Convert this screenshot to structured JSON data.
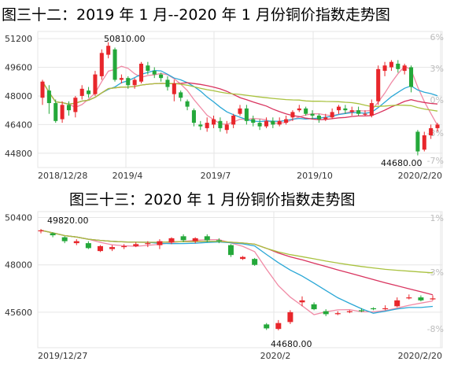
{
  "titles": {
    "chart1": "图三十二：2019 年 1 月--2020 年 1 月份铜价指数走势图",
    "chart2": "图三十三：2020 年 1 月份铜价指数走势图"
  },
  "colors": {
    "up": "#e8262b",
    "down": "#24a83a",
    "ma_cyan": "#2aa7d6",
    "ma_pink": "#f08aa5",
    "ma_crimson": "#d9345f",
    "ma_olive": "#a9c23f",
    "grid": "#e6e6e6"
  },
  "chart_data": [
    {
      "type": "candlestick",
      "title": "图三十二：2019 年 1 月--2020 年 1 月份铜价指数走势图",
      "y_ticks": [
        51200,
        49600,
        48000,
        46400,
        44800
      ],
      "ylim": [
        44000,
        51600
      ],
      "right_axis_ticks": [
        "6%",
        "3%",
        "0%",
        "-3%",
        "-7%"
      ],
      "x_tick_labels": [
        "2018/12/28",
        "2019/4",
        "2019/7",
        "2019/10",
        "2020/2/20"
      ],
      "annotations": {
        "high": "50810.00",
        "low": "44680.00"
      },
      "grid": true,
      "candles": [
        [
          47900,
          48800,
          48900,
          47500
        ],
        [
          48300,
          47600,
          48600,
          47000
        ],
        [
          47600,
          46600,
          47800,
          46500
        ],
        [
          46700,
          47500,
          47700,
          46500
        ],
        [
          47500,
          47200,
          47700,
          46900
        ],
        [
          47100,
          47900,
          48000,
          46800
        ],
        [
          48000,
          48400,
          48600,
          47800
        ],
        [
          48300,
          48100,
          48500,
          47900
        ],
        [
          48100,
          49200,
          49400,
          48000
        ],
        [
          49100,
          50400,
          50600,
          48900
        ],
        [
          50300,
          50800,
          51000,
          50100
        ],
        [
          50600,
          48900,
          50700,
          48800
        ],
        [
          48900,
          49000,
          49200,
          48700
        ],
        [
          49000,
          48600,
          49100,
          48400
        ],
        [
          48600,
          48900,
          49000,
          48400
        ],
        [
          48800,
          49800,
          49900,
          48700
        ],
        [
          49700,
          49400,
          49900,
          49200
        ],
        [
          49400,
          49200,
          49600,
          49000
        ],
        [
          49200,
          49000,
          49300,
          48800
        ],
        [
          48900,
          48500,
          49100,
          48300
        ],
        [
          48100,
          48700,
          48900,
          47700
        ],
        [
          48200,
          47900,
          48300,
          47700
        ],
        [
          47700,
          47400,
          47800,
          47200
        ],
        [
          47200,
          46500,
          47300,
          46300
        ],
        [
          46400,
          46300,
          46600,
          46100
        ],
        [
          46200,
          46500,
          46800,
          46000
        ],
        [
          46400,
          46700,
          46900,
          46200
        ],
        [
          46600,
          46200,
          46800,
          46000
        ],
        [
          46100,
          46400,
          46600,
          45900
        ],
        [
          46400,
          46900,
          47000,
          46200
        ],
        [
          47000,
          47300,
          47500,
          46900
        ],
        [
          47300,
          46600,
          47500,
          46400
        ],
        [
          46700,
          46500,
          46900,
          46300
        ],
        [
          46500,
          46300,
          46700,
          46100
        ],
        [
          46300,
          46600,
          46800,
          46200
        ],
        [
          46600,
          46400,
          46800,
          46200
        ],
        [
          46400,
          46600,
          46800,
          46300
        ],
        [
          46500,
          46700,
          46900,
          46400
        ],
        [
          46800,
          47100,
          47200,
          46600
        ],
        [
          47200,
          47300,
          47500,
          47100
        ],
        [
          47300,
          47000,
          47400,
          46900
        ],
        [
          47000,
          46900,
          47200,
          46700
        ],
        [
          46900,
          46700,
          47000,
          46500
        ],
        [
          46700,
          46800,
          47000,
          46600
        ],
        [
          46800,
          47100,
          47300,
          46700
        ],
        [
          47200,
          47400,
          47500,
          47000
        ],
        [
          47300,
          47200,
          47500,
          47000
        ],
        [
          47100,
          47200,
          47400,
          46900
        ],
        [
          47200,
          47000,
          47400,
          46900
        ],
        [
          47000,
          47000,
          47200,
          46900
        ],
        [
          46900,
          47600,
          47800,
          46800
        ],
        [
          47700,
          49500,
          49700,
          47500
        ],
        [
          49400,
          49700,
          49900,
          49100
        ],
        [
          49600,
          49900,
          50000,
          49400
        ],
        [
          49800,
          49500,
          50000,
          49300
        ],
        [
          49400,
          49700,
          49800,
          49200
        ],
        [
          49600,
          48500,
          49700,
          48200
        ],
        [
          46000,
          44900,
          46100,
          44680
        ],
        [
          45000,
          45800,
          46000,
          44900
        ],
        [
          45800,
          46200,
          46400,
          45600
        ],
        [
          46200,
          46400,
          46500,
          46000
        ]
      ]
    },
    {
      "type": "candlestick",
      "title": "图三十三：2020 年 1 月份铜价指数走势图",
      "y_ticks": [
        50400,
        48000,
        45600
      ],
      "ylim": [
        43800,
        50700
      ],
      "right_axis_ticks": [
        "1%",
        "-3%",
        "-8%"
      ],
      "x_tick_labels": [
        "2019/12/27",
        "2020/2",
        "2020/2/20"
      ],
      "annotations": {
        "high": "49820.00",
        "low": "44680.00"
      },
      "grid": true,
      "candles": [
        [
          49700,
          49750,
          49820,
          49600
        ],
        [
          49600,
          49500,
          49650,
          49400
        ],
        [
          49400,
          49200,
          49450,
          49100
        ],
        [
          49100,
          49200,
          49300,
          49000
        ],
        [
          49100,
          48850,
          49200,
          48800
        ],
        [
          48700,
          48950,
          49000,
          48650
        ],
        [
          48800,
          48900,
          49000,
          48700
        ],
        [
          48900,
          48950,
          49050,
          48800
        ],
        [
          48950,
          49050,
          49150,
          48900
        ],
        [
          49100,
          49100,
          49200,
          48900
        ],
        [
          49000,
          49200,
          49300,
          48800
        ],
        [
          49150,
          49350,
          49400,
          49050
        ],
        [
          49450,
          49250,
          49550,
          49150
        ],
        [
          49200,
          49350,
          49400,
          49100
        ],
        [
          49450,
          49250,
          49550,
          49150
        ],
        [
          49250,
          49200,
          49350,
          49100
        ],
        [
          49000,
          48500,
          49050,
          48400
        ],
        [
          48300,
          48400,
          48450,
          48250
        ],
        [
          48300,
          48000,
          48350,
          47950
        ],
        [
          44980,
          44780,
          45050,
          44700
        ],
        [
          44750,
          45050,
          45200,
          44680
        ],
        [
          45100,
          45600,
          45700,
          45000
        ],
        [
          46100,
          46200,
          46400,
          45900
        ],
        [
          46000,
          45750,
          46100,
          45700
        ],
        [
          45650,
          45500,
          45750,
          45400
        ],
        [
          45500,
          45550,
          45650,
          45450
        ],
        [
          45600,
          45650,
          45700,
          45550
        ],
        [
          45700,
          45650,
          45800,
          45600
        ],
        [
          45800,
          45750,
          45850,
          45700
        ],
        [
          45800,
          45800,
          45950,
          45700
        ],
        [
          45900,
          46200,
          46350,
          45850
        ],
        [
          46300,
          46350,
          46500,
          46250
        ],
        [
          46350,
          46200,
          46450,
          46150
        ],
        [
          46250,
          46300,
          46450,
          46200
        ]
      ]
    }
  ]
}
